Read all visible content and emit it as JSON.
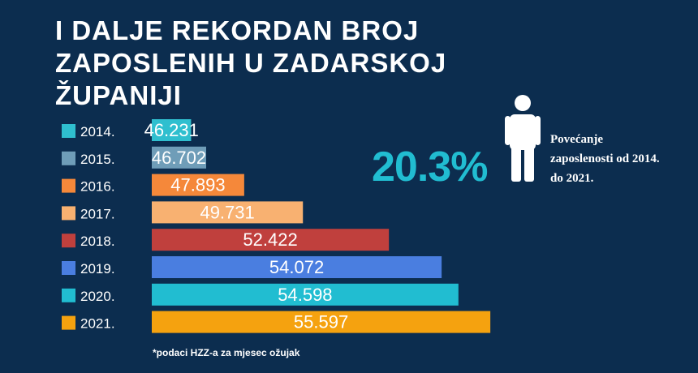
{
  "title_lines": [
    "I DALJE REKORDAN BROJ",
    "ZAPOSLENIH U ZADARSKOJ",
    "ŽUPANIJI"
  ],
  "highlight": {
    "value": "20.3%",
    "description_lines": [
      "Povećanje",
      "zaposlenosti od 2014.",
      "do 2021."
    ],
    "icon": "person-icon"
  },
  "footnote": "*podaci HZZ-a za mjesec ožujak",
  "colors": {
    "background": "#0c2d4f",
    "accent": "#21bdd1"
  },
  "chart_data": {
    "type": "bar",
    "orientation": "horizontal",
    "categories": [
      "2014.",
      "2015.",
      "2016.",
      "2017.",
      "2018.",
      "2019.",
      "2020.",
      "2021."
    ],
    "values": [
      46231,
      46702,
      47893,
      49731,
      52422,
      54072,
      54598,
      55597
    ],
    "value_labels": [
      "46.231",
      "46.702",
      "47.893",
      "49.731",
      "52.422",
      "54.072",
      "54.598",
      "55.597"
    ],
    "colors": [
      "#2fbfcf",
      "#6f9db8",
      "#f5883a",
      "#f8b171",
      "#c0403d",
      "#4a7ee0",
      "#21bdd1",
      "#f5a20f"
    ],
    "xlim": [
      45000,
      56000
    ],
    "legend": "left",
    "grid": false
  }
}
